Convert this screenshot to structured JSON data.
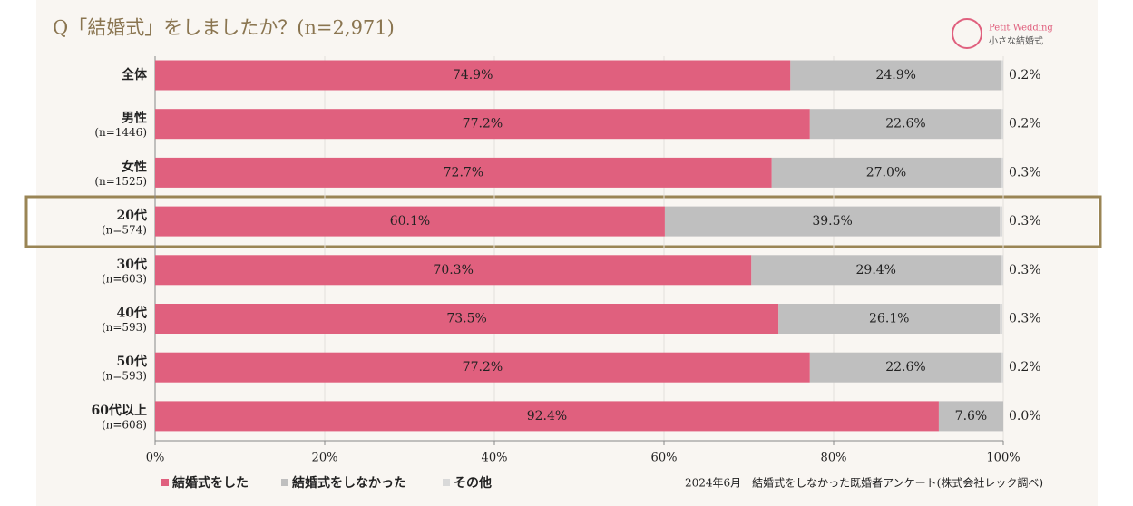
{
  "chart_data": {
    "type": "stacked-bar-horizontal",
    "title": "Q「結婚式」をしましたか？(n=2,971)",
    "logo": {
      "name": "Petit Wedding",
      "subtitle": "小さな結婚式"
    },
    "source": "2024年6月　結婚式をしなかった既婚者アンケート(株式会社レック調べ)",
    "categories": [
      "全体",
      "男性",
      "女性",
      "20代",
      "30代",
      "40代",
      "50代",
      "60代以上"
    ],
    "category_notes": [
      null,
      "(n=1446)",
      "(n=1525)",
      "(n=574)",
      "(n=603)",
      "(n=593)",
      "(n=593)",
      "(n=608)"
    ],
    "series": [
      {
        "name": "結婚式をした",
        "color": "#e0607e",
        "values": [
          74.9,
          77.2,
          72.7,
          60.1,
          70.3,
          73.5,
          77.2,
          92.4
        ],
        "value_labels": [
          "74.9%",
          "77.2%",
          "72.7%",
          "60.1%",
          "70.3%",
          "73.5%",
          "77.2%",
          "92.4%"
        ]
      },
      {
        "name": "結婚式をしなかった",
        "color": "#bfbfbf",
        "values": [
          24.9,
          22.6,
          27.0,
          39.5,
          29.4,
          26.1,
          22.6,
          7.6
        ],
        "value_labels": [
          "24.9%",
          "22.6%",
          "27.0%",
          "39.5%",
          "29.4%",
          "26.1%",
          "22.6%",
          "7.6%"
        ]
      },
      {
        "name": "その他",
        "color": "#d9d9d9",
        "values": [
          0.2,
          0.2,
          0.3,
          0.3,
          0.3,
          0.3,
          0.2,
          0.0
        ],
        "value_labels": [
          "0.2%",
          "0.2%",
          "0.3%",
          "0.3%",
          "0.3%",
          "0.3%",
          "0.2%",
          "0.0%"
        ]
      }
    ],
    "xlim": [
      0,
      100
    ],
    "xticks": [
      {
        "value": 0,
        "label": "0%"
      },
      {
        "value": 20,
        "label": "20%"
      },
      {
        "value": 40,
        "label": "40%"
      },
      {
        "value": 60,
        "label": "60%"
      },
      {
        "value": 80,
        "label": "80%"
      },
      {
        "value": 100,
        "label": "100%"
      }
    ],
    "grid": true
  }
}
